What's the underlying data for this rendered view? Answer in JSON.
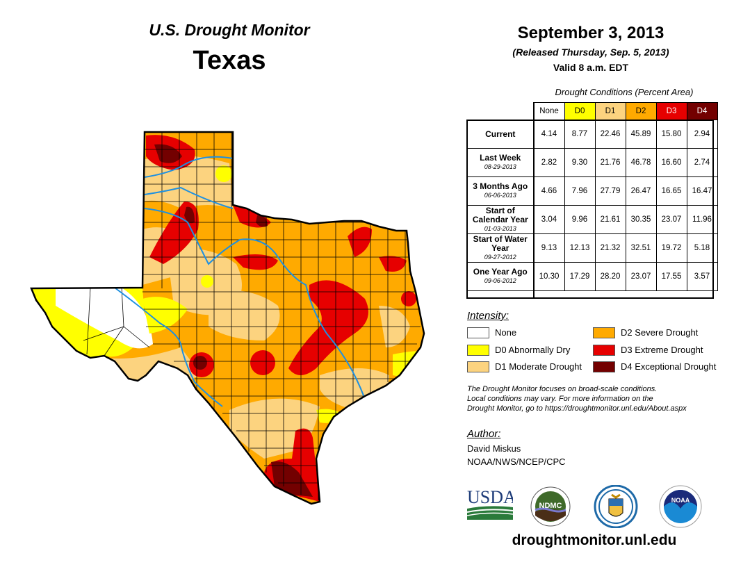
{
  "header": {
    "title": "U.S. Drought Monitor",
    "region": "Texas",
    "date": "September 3, 2013",
    "released": "(Released Thursday, Sep. 5, 2013)",
    "valid": "Valid 8 a.m. EDT"
  },
  "table": {
    "caption": "Drought Conditions (Percent Area)",
    "columns": [
      {
        "label": "None",
        "color": "#ffffff",
        "text_color": "#000000"
      },
      {
        "label": "D0",
        "color": "#ffff00",
        "text_color": "#000000"
      },
      {
        "label": "D1",
        "color": "#fcd37f",
        "text_color": "#000000"
      },
      {
        "label": "D2",
        "color": "#ffaa00",
        "text_color": "#000000"
      },
      {
        "label": "D3",
        "color": "#e60000",
        "text_color": "#ffffff"
      },
      {
        "label": "D4",
        "color": "#730000",
        "text_color": "#ffffff"
      }
    ],
    "rows": [
      {
        "label": "Current",
        "date": "",
        "values": [
          "4.14",
          "8.77",
          "22.46",
          "45.89",
          "15.80",
          "2.94"
        ]
      },
      {
        "label": "Last Week",
        "date": "08-29-2013",
        "values": [
          "2.82",
          "9.30",
          "21.76",
          "46.78",
          "16.60",
          "2.74"
        ]
      },
      {
        "label": "3 Months Ago",
        "date": "06-06-2013",
        "values": [
          "4.66",
          "7.96",
          "27.79",
          "26.47",
          "16.65",
          "16.47"
        ]
      },
      {
        "label": "Start of Calendar Year",
        "date": "01-03-2013",
        "values": [
          "3.04",
          "9.96",
          "21.61",
          "30.35",
          "23.07",
          "11.96"
        ]
      },
      {
        "label": "Start of Water Year",
        "date": "09-27-2012",
        "values": [
          "9.13",
          "12.13",
          "21.32",
          "32.51",
          "19.72",
          "5.18"
        ]
      },
      {
        "label": "One Year Ago",
        "date": "09-06-2012",
        "values": [
          "10.30",
          "17.29",
          "28.20",
          "23.07",
          "17.55",
          "3.57"
        ]
      }
    ]
  },
  "legend": {
    "title": "Intensity:",
    "items": [
      {
        "label": "None",
        "color": "#ffffff"
      },
      {
        "label": "D0 Abnormally Dry",
        "color": "#ffff00"
      },
      {
        "label": "D1 Moderate Drought",
        "color": "#fcd37f"
      },
      {
        "label": "D2 Severe Drought",
        "color": "#ffaa00"
      },
      {
        "label": "D3 Extreme Drought",
        "color": "#e60000"
      },
      {
        "label": "D4 Exceptional Drought",
        "color": "#730000"
      }
    ]
  },
  "note": "The Drought Monitor focuses on broad-scale conditions. Local conditions may vary. For more information on the Drought Monitor, go to https://droughtmonitor.unl.edu/About.aspx",
  "note_lines": [
    "The Drought Monitor focuses on broad-scale conditions.",
    "Local conditions may vary. For more information on the",
    "Drought Monitor, go to https://droughtmonitor.unl.edu/About.aspx"
  ],
  "author": {
    "title": "Author:",
    "name": "David Miskus",
    "org": "NOAA/NWS/NCEP/CPC"
  },
  "logos": {
    "usda": "USDA",
    "ndmc": "NDMC",
    "noaa": "NOAA"
  },
  "footer": {
    "site": "droughtmonitor.unl.edu"
  },
  "map": {
    "river_color": "#1e90e0"
  }
}
